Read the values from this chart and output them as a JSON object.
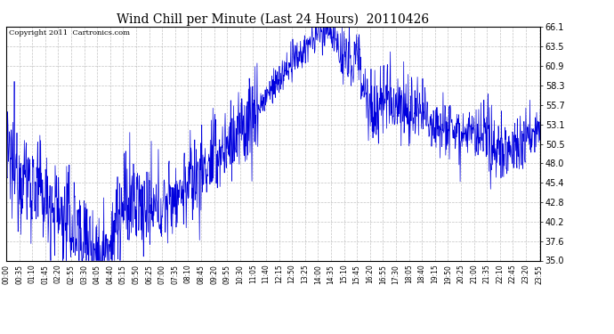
{
  "title": "Wind Chill per Minute (Last 24 Hours)  20110426",
  "copyright": "Copyright 2011  Cartronics.com",
  "line_color": "#0000dd",
  "background_color": "#ffffff",
  "grid_color": "#aaaaaa",
  "ylim": [
    35.0,
    66.1
  ],
  "yticks": [
    35.0,
    37.6,
    40.2,
    42.8,
    45.4,
    48.0,
    50.5,
    53.1,
    55.7,
    58.3,
    60.9,
    63.5,
    66.1
  ],
  "xtick_labels": [
    "00:00",
    "00:35",
    "01:10",
    "01:45",
    "02:20",
    "02:55",
    "03:30",
    "04:05",
    "04:40",
    "05:15",
    "05:50",
    "06:25",
    "07:00",
    "07:35",
    "08:10",
    "08:45",
    "09:20",
    "09:55",
    "10:30",
    "11:05",
    "11:40",
    "12:15",
    "12:50",
    "13:25",
    "14:00",
    "14:35",
    "15:10",
    "15:45",
    "16:20",
    "16:55",
    "17:30",
    "18:05",
    "18:40",
    "19:15",
    "19:50",
    "20:25",
    "21:00",
    "21:35",
    "22:10",
    "22:45",
    "23:20",
    "23:55"
  ],
  "figsize": [
    6.9,
    3.75
  ],
  "dpi": 100
}
